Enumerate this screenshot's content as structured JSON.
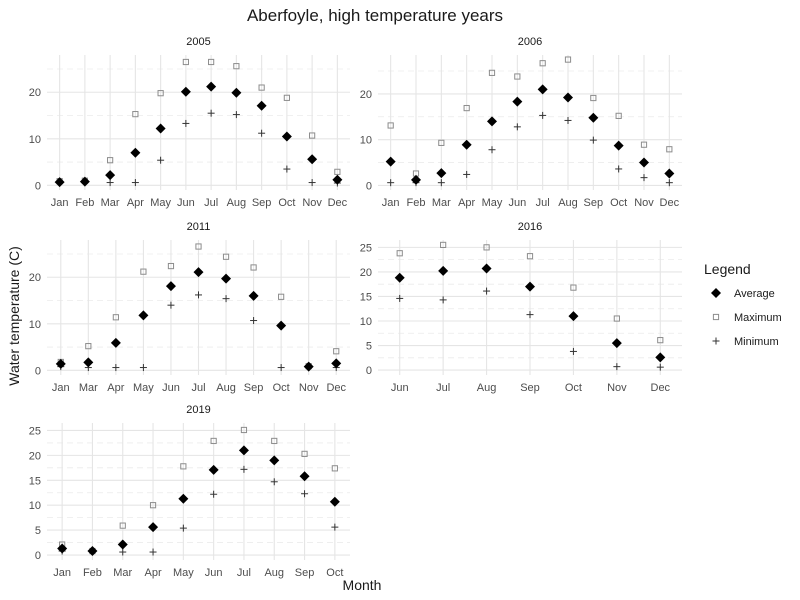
{
  "chart_data": {
    "type": "scatter",
    "title": "Aberfoyle, high temperature years",
    "xlabel": "Month",
    "ylabel": "Water temperature (C)",
    "grid": true,
    "legend": {
      "title": "Legend",
      "placement": "right",
      "entries": [
        {
          "name": "Average",
          "symbol": "filled-diamond"
        },
        {
          "name": "Maximum",
          "symbol": "open-square"
        },
        {
          "name": "Minimum",
          "symbol": "plus"
        }
      ]
    },
    "panels": [
      {
        "title": "2005",
        "months": [
          "Jan",
          "Feb",
          "Mar",
          "Apr",
          "May",
          "Jun",
          "Jul",
          "Aug",
          "Sep",
          "Oct",
          "Nov",
          "Dec"
        ],
        "yticks": [
          0,
          10,
          20
        ],
        "ylim": [
          -1,
          28
        ],
        "series": [
          {
            "name": "Average",
            "values": [
              0.7,
              0.8,
              2.2,
              7.0,
              12.2,
              20.1,
              21.2,
              19.9,
              17.1,
              10.5,
              5.6,
              1.2
            ]
          },
          {
            "name": "Maximum",
            "values": [
              0.9,
              1.0,
              5.4,
              15.3,
              19.8,
              26.5,
              26.5,
              25.6,
              21.0,
              18.8,
              10.7,
              2.9
            ]
          },
          {
            "name": "Minimum",
            "values": [
              0.5,
              0.6,
              0.6,
              0.6,
              5.4,
              13.3,
              15.5,
              15.2,
              11.2,
              3.5,
              0.6,
              0.5
            ]
          }
        ]
      },
      {
        "title": "2006",
        "months": [
          "Jan",
          "Feb",
          "Mar",
          "Apr",
          "May",
          "Jun",
          "Jul",
          "Aug",
          "Sep",
          "Oct",
          "Nov",
          "Dec"
        ],
        "yticks": [
          0,
          10,
          20
        ],
        "ylim": [
          -1,
          28.5
        ],
        "series": [
          {
            "name": "Average",
            "values": [
              5.2,
              1.2,
              2.7,
              8.9,
              14.0,
              18.3,
              21.0,
              19.2,
              14.8,
              8.7,
              5.0,
              2.6
            ]
          },
          {
            "name": "Maximum",
            "values": [
              13.1,
              2.6,
              9.3,
              16.9,
              24.6,
              23.8,
              26.7,
              27.5,
              19.1,
              15.2,
              8.9,
              7.9
            ]
          },
          {
            "name": "Minimum",
            "values": [
              0.6,
              0.6,
              0.6,
              2.4,
              7.8,
              12.8,
              15.3,
              14.2,
              9.9,
              3.6,
              1.7,
              0.6
            ]
          }
        ]
      },
      {
        "title": "2011",
        "months": [
          "Jan",
          "Mar",
          "Apr",
          "May",
          "Jun",
          "Jul",
          "Aug",
          "Sep",
          "Oct",
          "Nov",
          "Dec"
        ],
        "yticks": [
          0,
          10,
          20
        ],
        "ylim": [
          -1,
          28
        ],
        "series": [
          {
            "name": "Average",
            "values": [
              1.4,
              1.7,
              5.9,
              11.8,
              18.1,
              21.1,
              19.7,
              16.0,
              9.6,
              0.8,
              1.5
            ]
          },
          {
            "name": "Maximum",
            "values": [
              1.8,
              5.2,
              11.4,
              21.2,
              22.4,
              26.6,
              24.4,
              22.1,
              15.8,
              0.9,
              4.1
            ]
          },
          {
            "name": "Minimum",
            "values": [
              0.8,
              0.6,
              0.6,
              0.6,
              14.0,
              16.2,
              15.4,
              10.7,
              0.6,
              0.7,
              0.6
            ]
          }
        ]
      },
      {
        "title": "2016",
        "months": [
          "Jun",
          "Jul",
          "Aug",
          "Sep",
          "Oct",
          "Nov",
          "Dec"
        ],
        "yticks": [
          0,
          5,
          10,
          15,
          20,
          25
        ],
        "ylim": [
          -1,
          26.5
        ],
        "series": [
          {
            "name": "Average",
            "values": [
              18.8,
              20.2,
              20.7,
              17.0,
              11.0,
              5.5,
              2.6
            ]
          },
          {
            "name": "Maximum",
            "values": [
              23.8,
              25.5,
              25.0,
              23.2,
              16.8,
              10.5,
              6.1
            ]
          },
          {
            "name": "Minimum",
            "values": [
              14.6,
              14.3,
              16.1,
              11.3,
              3.8,
              0.7,
              0.6
            ]
          }
        ]
      },
      {
        "title": "2019",
        "months": [
          "Jan",
          "Feb",
          "Mar",
          "Apr",
          "May",
          "Jun",
          "Jul",
          "Aug",
          "Sep",
          "Oct"
        ],
        "yticks": [
          0,
          5,
          10,
          15,
          20,
          25
        ],
        "ylim": [
          -1,
          26.5
        ],
        "series": [
          {
            "name": "Average",
            "values": [
              1.3,
              0.8,
              2.1,
              5.6,
              11.3,
              17.1,
              21.0,
              19.0,
              15.8,
              10.7
            ]
          },
          {
            "name": "Maximum",
            "values": [
              2.1,
              0.8,
              5.9,
              10.0,
              17.8,
              22.9,
              25.1,
              22.9,
              20.3,
              17.4
            ]
          },
          {
            "name": "Minimum",
            "values": [
              0.8,
              0.8,
              0.6,
              0.6,
              5.4,
              12.2,
              17.2,
              14.7,
              12.3,
              5.6
            ]
          }
        ]
      }
    ]
  }
}
